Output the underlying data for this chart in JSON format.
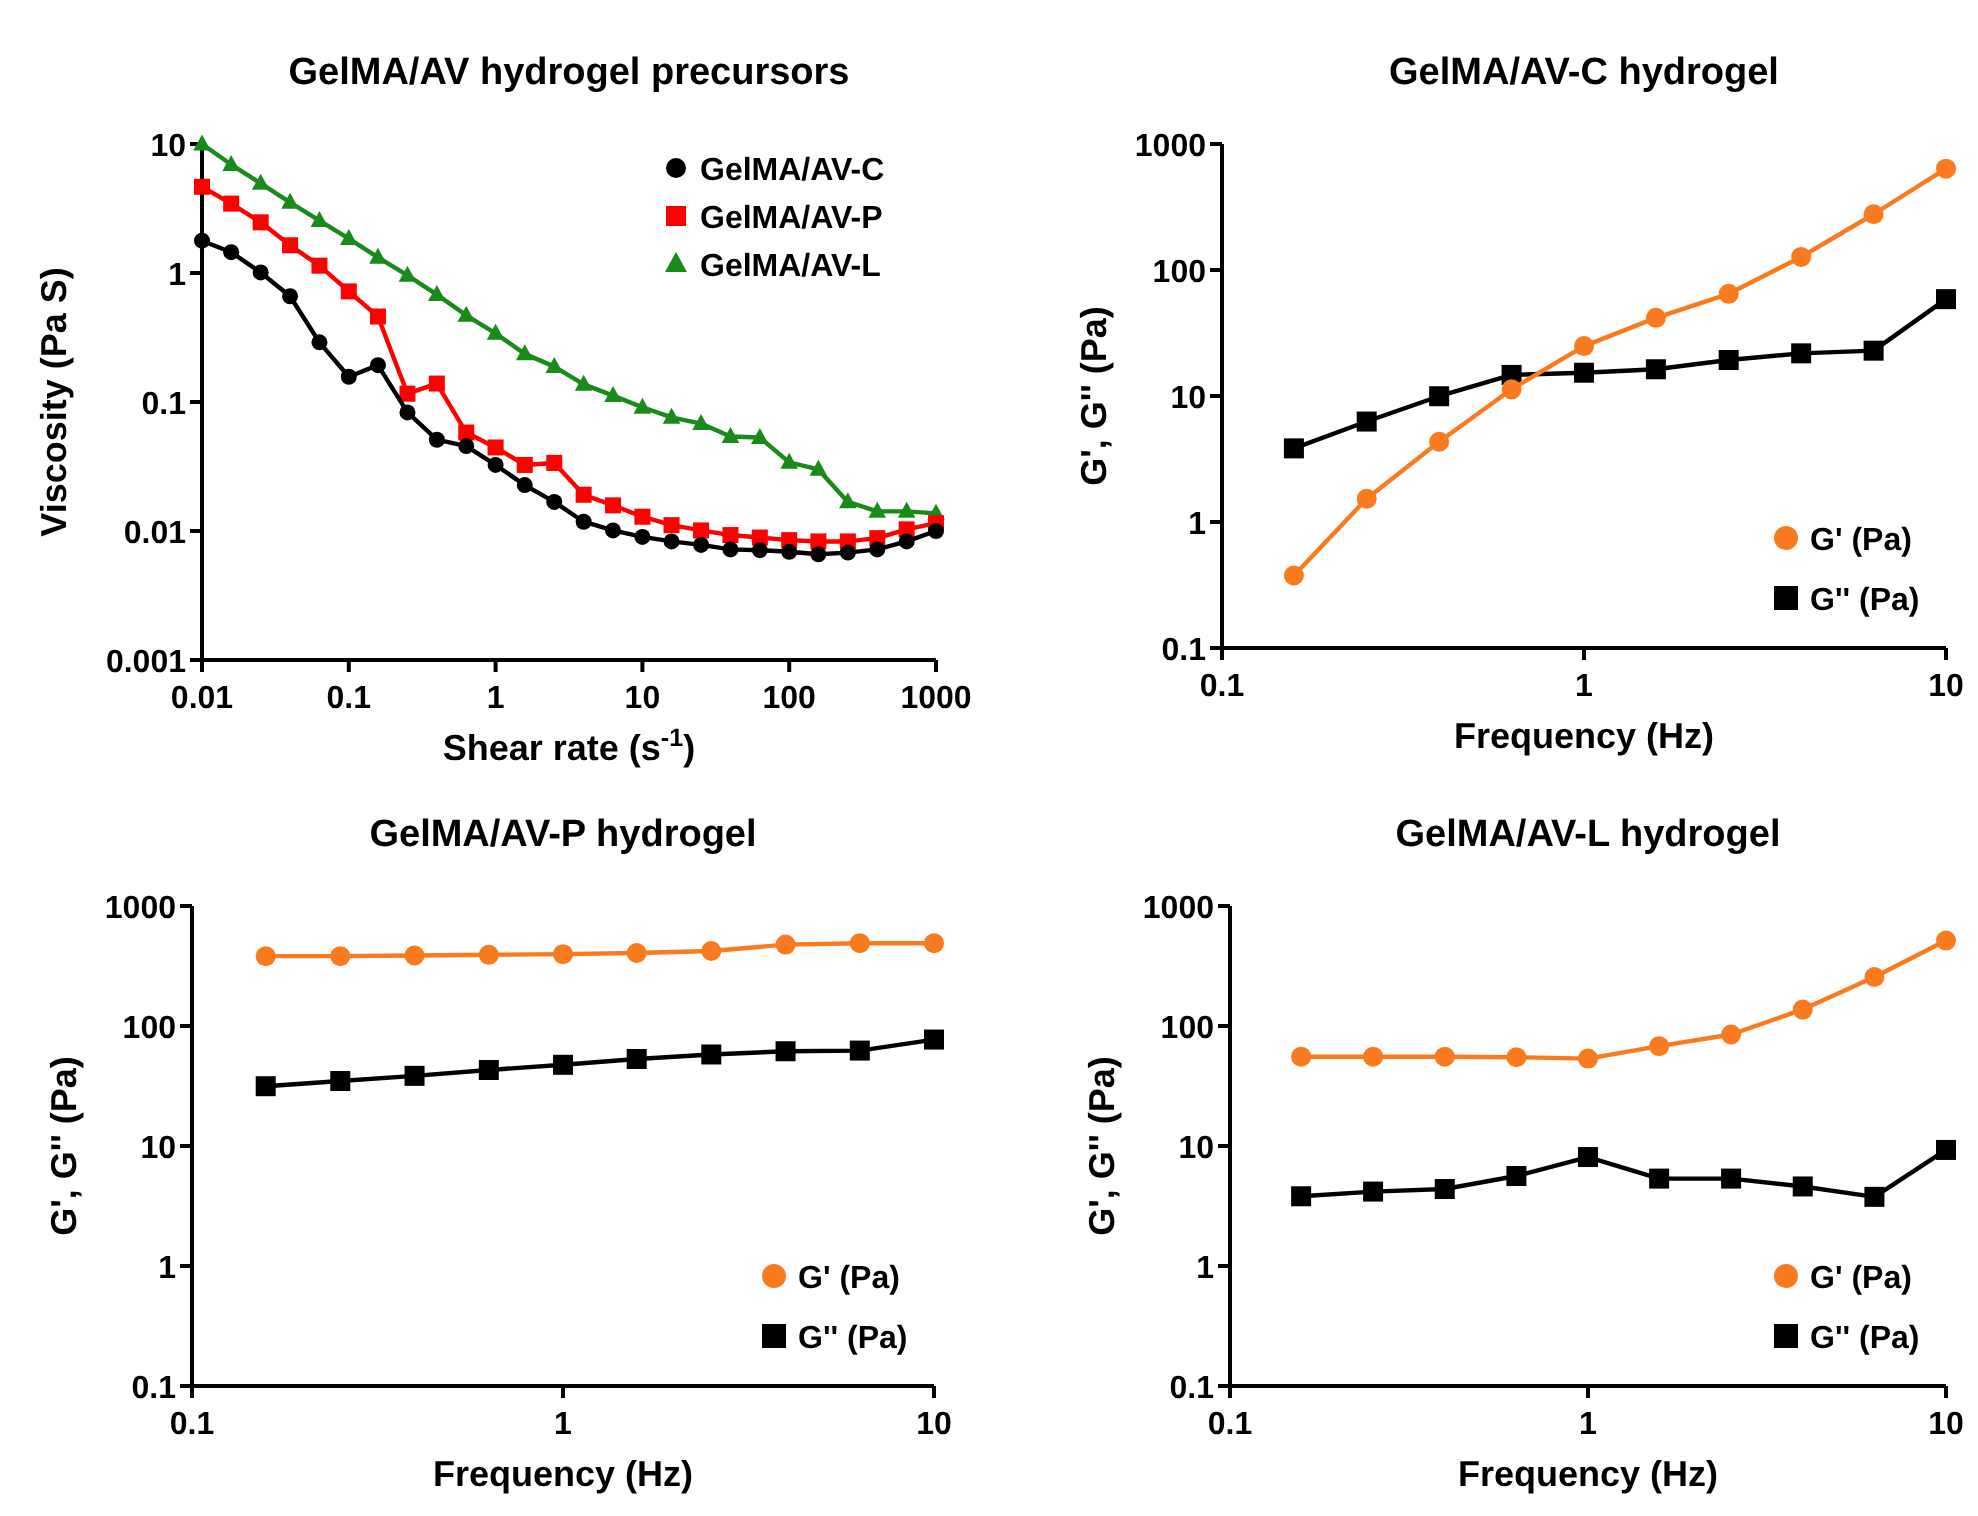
{
  "chart_data": [
    {
      "type": "line",
      "title": "GelMA/AV hydrogel precursors",
      "xlabel": "Shear rate (s$^{-1}$)",
      "ylabel": "Viscosity (Pa S)",
      "log": "xy",
      "xlim": [
        0.01,
        1000
      ],
      "xticks": [
        0.01,
        0.1,
        1,
        10,
        100,
        1000
      ],
      "ylim": [
        0.001,
        10
      ],
      "yticks": [
        0.001,
        0.01,
        0.1,
        1,
        10
      ],
      "grid": false,
      "legend": "top right",
      "line_style": "solid",
      "x": [
        0.01,
        0.0158,
        0.0251,
        0.0398,
        0.0631,
        0.1,
        0.158,
        0.251,
        0.398,
        0.631,
        1,
        1.58,
        2.51,
        3.98,
        6.31,
        10,
        15.8,
        25.1,
        39.8,
        63.1,
        100,
        158,
        251,
        398,
        631,
        1000
      ],
      "series": [
        {
          "name": "GelMA/AV-C",
          "color": "#000000",
          "marker": "circle",
          "values": [
            1.78,
            1.45,
            1.01,
            0.66,
            0.29,
            0.157,
            0.193,
            0.083,
            0.051,
            0.0455,
            0.0325,
            0.0227,
            0.0168,
            0.0118,
            0.0101,
            0.009,
            0.0083,
            0.0078,
            0.0072,
            0.0071,
            0.0069,
            0.0066,
            0.0068,
            0.0072,
            0.0083,
            0.01
          ]
        },
        {
          "name": "GelMA/AV-P",
          "color": "#ff0000",
          "marker": "square",
          "values": [
            4.66,
            3.45,
            2.47,
            1.64,
            1.14,
            0.72,
            0.46,
            0.116,
            0.139,
            0.058,
            0.0444,
            0.0325,
            0.0337,
            0.0191,
            0.0158,
            0.0129,
            0.0111,
            0.0101,
            0.0093,
            0.0089,
            0.0085,
            0.0083,
            0.0083,
            0.0088,
            0.0103,
            0.0115
          ]
        },
        {
          "name": "GelMA/AV-L",
          "color": "#1a8a1a",
          "marker": "triangle",
          "values": [
            10,
            6.93,
            4.95,
            3.53,
            2.55,
            1.85,
            1.32,
            0.96,
            0.68,
            0.47,
            0.34,
            0.236,
            0.188,
            0.137,
            0.112,
            0.091,
            0.076,
            0.068,
            0.054,
            0.053,
            0.034,
            0.03,
            0.0168,
            0.0142,
            0.0142,
            0.0137
          ]
        }
      ]
    },
    {
      "type": "line",
      "title": "GelMA/AV-C hydrogel",
      "xlabel": "Frequency (Hz)",
      "ylabel": "G', G'' (Pa)",
      "log": "xy",
      "xlim": [
        0.1,
        10
      ],
      "xticks": [
        0.1,
        1,
        10
      ],
      "ylim": [
        0.1,
        1000
      ],
      "yticks": [
        0.1,
        1,
        10,
        100,
        1000
      ],
      "grid": false,
      "legend": "bottom right",
      "line_style": "solid",
      "x": [
        0.158,
        0.251,
        0.398,
        0.631,
        1,
        1.58,
        2.51,
        3.98,
        6.31,
        10
      ],
      "series": [
        {
          "name": "G' (Pa)",
          "color": "#f97a1f",
          "marker": "circle",
          "values": [
            0.376,
            1.53,
            4.33,
            11.3,
            24.9,
            41.7,
            64.7,
            127,
            277,
            637
          ]
        },
        {
          "name": "G'' (Pa)",
          "color": "#000000",
          "marker": "square",
          "values": [
            3.84,
            6.27,
            9.96,
            14.7,
            15.3,
            16.3,
            19.3,
            21.8,
            22.9,
            58.7
          ]
        }
      ]
    },
    {
      "type": "line",
      "title": "GelMA/AV-P hydrogel",
      "xlabel": "Frequency (Hz)",
      "ylabel": "G', G'' (Pa)",
      "log": "xy",
      "xlim": [
        0.1,
        10
      ],
      "xticks": [
        0.1,
        1,
        10
      ],
      "ylim": [
        0.1,
        1000
      ],
      "yticks": [
        0.1,
        1,
        10,
        100,
        1000
      ],
      "grid": false,
      "legend": "bottom right",
      "line_style": "solid",
      "x": [
        0.158,
        0.251,
        0.398,
        0.631,
        1,
        1.58,
        2.51,
        3.98,
        6.31,
        10
      ],
      "series": [
        {
          "name": "G' (Pa)",
          "color": "#f97a1f",
          "marker": "circle",
          "values": [
            382,
            382,
            387,
            392,
            397,
            406,
            422,
            477,
            490,
            490
          ]
        },
        {
          "name": "G'' (Pa)",
          "color": "#000000",
          "marker": "square",
          "values": [
            31.5,
            34.8,
            38.4,
            43,
            47.5,
            53.1,
            57.9,
            61.6,
            62.4,
            77.1
          ]
        }
      ]
    },
    {
      "type": "line",
      "title": "GelMA/AV-L hydrogel",
      "xlabel": "Frequency (Hz)",
      "ylabel": "G', G'' (Pa)",
      "log": "xy",
      "xlim": [
        0.1,
        10
      ],
      "xticks": [
        0.1,
        1,
        10
      ],
      "ylim": [
        0.1,
        1000
      ],
      "yticks": [
        0.1,
        1,
        10,
        100,
        1000
      ],
      "grid": false,
      "legend": "bottom right",
      "line_style": "solid",
      "x": [
        0.158,
        0.251,
        0.398,
        0.631,
        1,
        1.58,
        2.51,
        3.98,
        6.31,
        10
      ],
      "series": [
        {
          "name": "G' (Pa)",
          "color": "#f97a1f",
          "marker": "circle",
          "values": [
            55.5,
            55.5,
            55.5,
            54.9,
            53.5,
            67.9,
            85,
            137,
            256,
            515
          ]
        },
        {
          "name": "G'' (Pa)",
          "color": "#000000",
          "marker": "square",
          "values": [
            3.81,
            4.17,
            4.38,
            5.62,
            8.09,
            5.35,
            5.35,
            4.6,
            3.77,
            9.27
          ]
        }
      ]
    }
  ]
}
